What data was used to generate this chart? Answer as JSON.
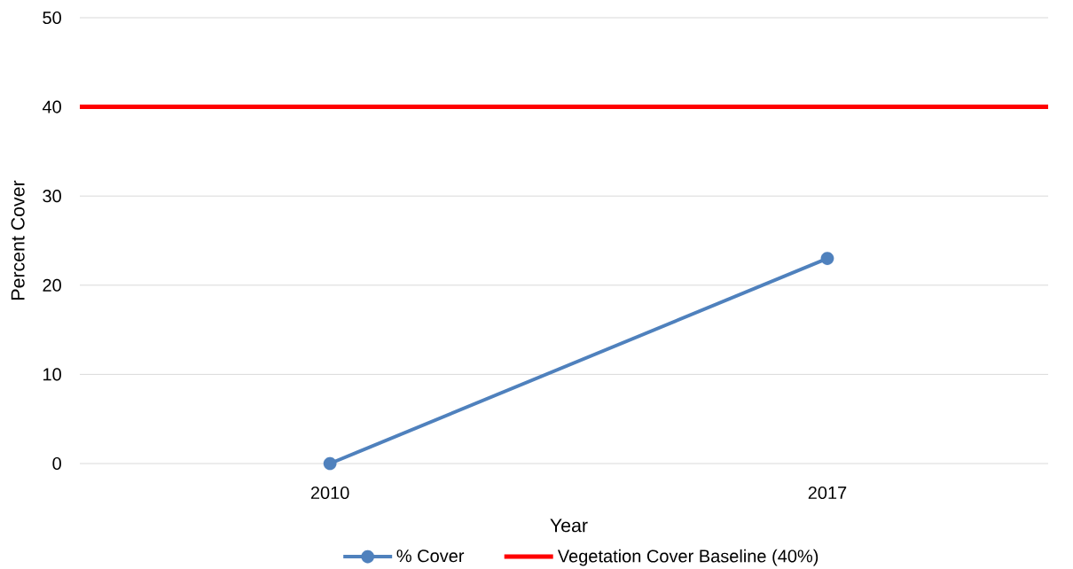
{
  "chart_data": {
    "type": "line",
    "categories": [
      "2010",
      "2017"
    ],
    "series": [
      {
        "name": "% Cover",
        "color": "#4f81bd",
        "values": [
          0,
          23
        ]
      }
    ],
    "xlabel": "Year",
    "ylabel": "Percent Cover",
    "ylim": [
      0,
      50
    ],
    "yticks": [
      0,
      10,
      20,
      30,
      40,
      50
    ],
    "grid": "y",
    "legend": "bottom",
    "marker": "circle",
    "line_style": "solid",
    "ref_lines": [
      {
        "axis": "y",
        "value": 40,
        "label": "Vegetation Cover Baseline (40%)",
        "color": "#ff0000"
      }
    ]
  }
}
